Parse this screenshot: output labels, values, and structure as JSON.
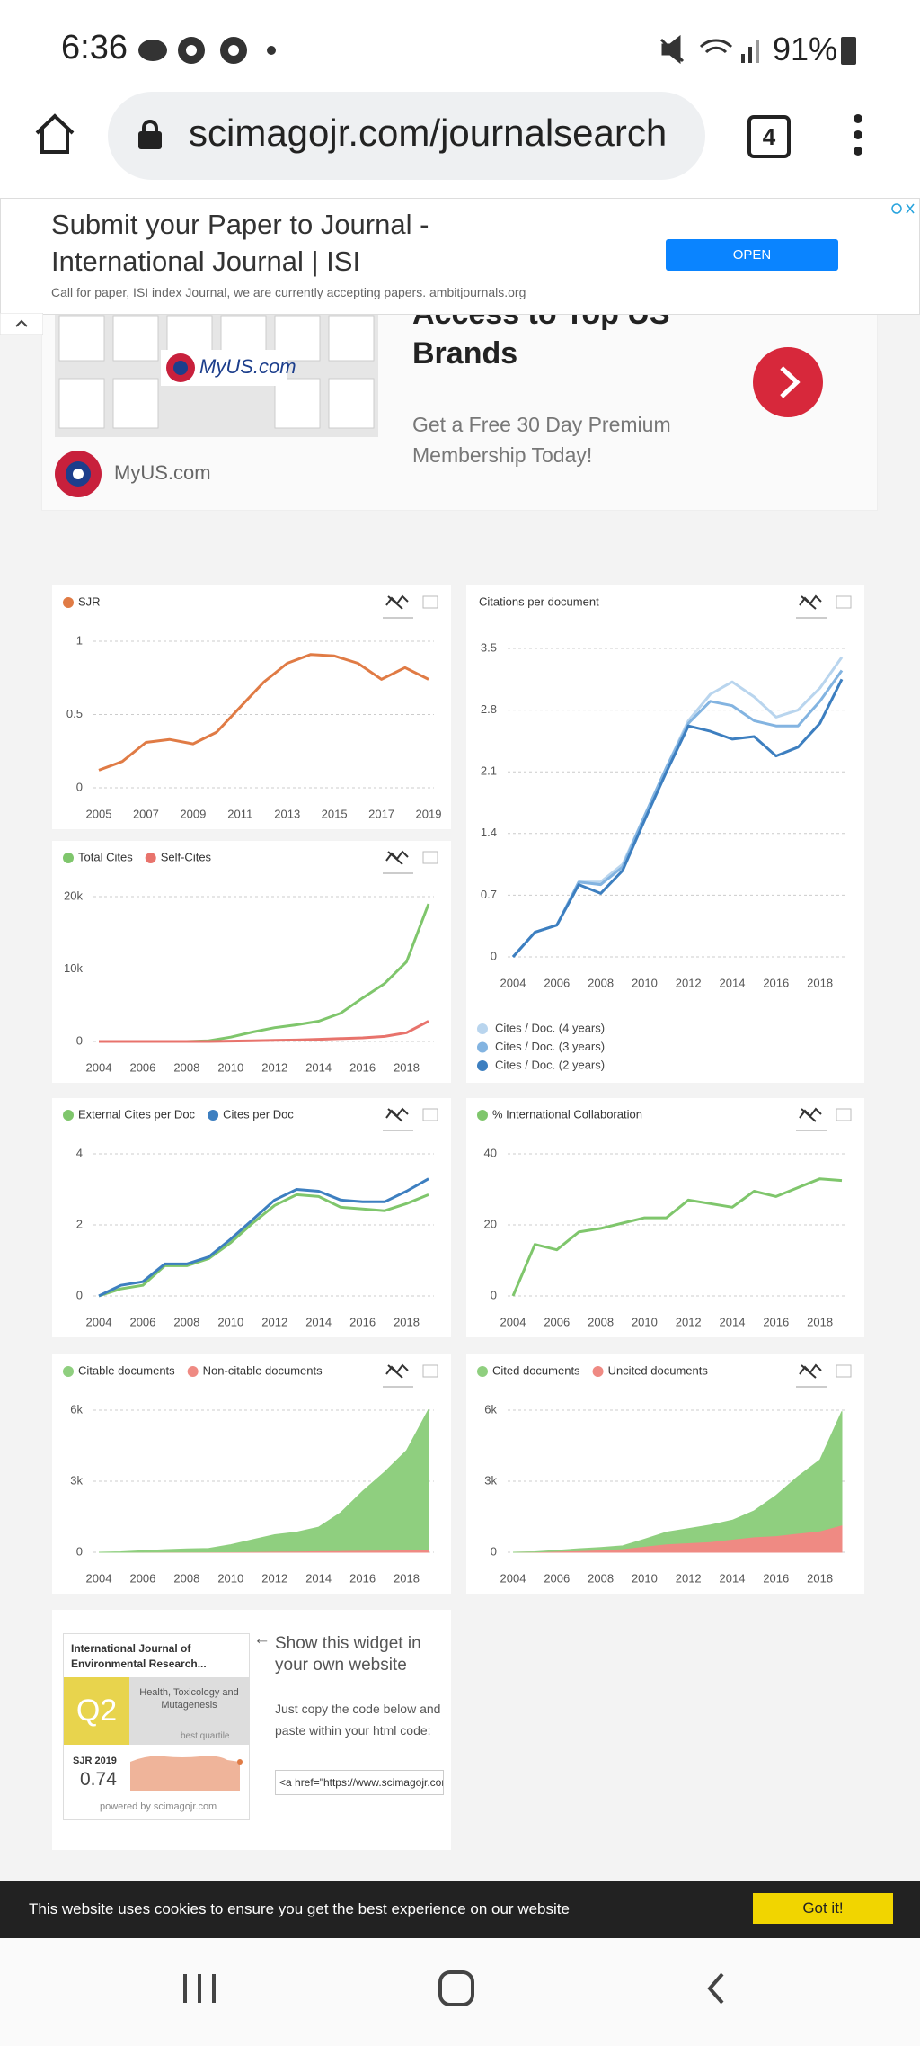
{
  "status_bar": {
    "time": "6:36",
    "battery": "91%"
  },
  "browser": {
    "url": "scimagojr.com/journalsearch",
    "tab_count": "4"
  },
  "ad_banner": {
    "title": "Submit your Paper to Journal - International Journal | ISI",
    "text": "Call for paper, ISI index Journal, we are currently accepting papers. ambitjournals.org",
    "button": "OPEN"
  },
  "ad_myus": {
    "headline": "Access to Top US Brands",
    "text": "Get a Free 30 Day Premium Membership Today!",
    "brand": "MyUS.com",
    "logo_text": "MyUS.com"
  },
  "chart_data": [
    {
      "type": "line",
      "legend": "top",
      "x": [
        2005,
        2006,
        2007,
        2008,
        2009,
        2010,
        2011,
        2012,
        2013,
        2014,
        2015,
        2016,
        2017,
        2018,
        2019
      ],
      "xlim": [
        2005,
        2019
      ],
      "xticks": [
        2005,
        2007,
        2009,
        2011,
        2013,
        2015,
        2017,
        2019
      ],
      "ylim": [
        0,
        1
      ],
      "yticks": [
        0,
        0.5,
        1
      ],
      "grid": true,
      "series": [
        {
          "name": "SJR",
          "color": "#e07b45",
          "values": [
            0.12,
            0.18,
            0.31,
            0.33,
            0.3,
            0.38,
            0.55,
            0.72,
            0.85,
            0.91,
            0.9,
            0.85,
            0.74,
            0.82,
            0.74
          ]
        }
      ]
    },
    {
      "type": "line",
      "legend": "bottom",
      "title": "Citations per document",
      "x": [
        2004,
        2005,
        2006,
        2007,
        2008,
        2009,
        2010,
        2011,
        2012,
        2013,
        2014,
        2015,
        2016,
        2017,
        2018,
        2019
      ],
      "xlim": [
        2004,
        2019
      ],
      "xticks": [
        2004,
        2006,
        2008,
        2010,
        2012,
        2014,
        2016,
        2018
      ],
      "ylim": [
        0,
        3.5
      ],
      "yticks": [
        0,
        0.7,
        1.4,
        2.1,
        2.8,
        3.5
      ],
      "grid": true,
      "series": [
        {
          "name": "Cites / Doc. (4 years)",
          "color": "#b9d5ee",
          "values": [
            null,
            null,
            null,
            0.85,
            0.85,
            1.05,
            1.6,
            2.15,
            2.68,
            2.98,
            3.12,
            2.95,
            2.72,
            2.8,
            3.05,
            3.4
          ]
        },
        {
          "name": "Cites / Doc. (3 years)",
          "color": "#83b4e1",
          "values": [
            0,
            0.28,
            0.36,
            0.85,
            0.82,
            1.02,
            1.6,
            2.15,
            2.65,
            2.9,
            2.85,
            2.68,
            2.62,
            2.62,
            2.9,
            3.25
          ]
        },
        {
          "name": "Cites / Doc. (2 years)",
          "color": "#3d7fc0",
          "values": [
            0,
            0.28,
            0.36,
            0.82,
            0.72,
            0.98,
            1.55,
            2.1,
            2.62,
            2.56,
            2.47,
            2.5,
            2.28,
            2.38,
            2.65,
            3.15
          ]
        }
      ]
    },
    {
      "type": "line",
      "legend": "top",
      "x": [
        2004,
        2005,
        2006,
        2007,
        2008,
        2009,
        2010,
        2011,
        2012,
        2013,
        2014,
        2015,
        2016,
        2017,
        2018,
        2019
      ],
      "xlim": [
        2004,
        2019
      ],
      "xticks": [
        2004,
        2006,
        2008,
        2010,
        2012,
        2014,
        2016,
        2018
      ],
      "ylim": [
        0,
        20000
      ],
      "yticks": [
        0,
        {
          "value": 10000,
          "label": "10k"
        },
        {
          "value": 20000,
          "label": "20k"
        }
      ],
      "grid": true,
      "series": [
        {
          "name": "Total Cites",
          "color": "#7fc66c",
          "values": [
            0,
            0,
            0,
            0,
            0,
            100,
            600,
            1300,
            1900,
            2300,
            2800,
            3900,
            6000,
            8000,
            11000,
            19000
          ]
        },
        {
          "name": "Self-Cites",
          "color": "#e8736c",
          "values": [
            0,
            0,
            0,
            0,
            0,
            0,
            50,
            100,
            150,
            200,
            300,
            400,
            500,
            700,
            1200,
            2800
          ]
        }
      ]
    },
    {
      "type": "line",
      "legend": "top",
      "x": [
        2004,
        2005,
        2006,
        2007,
        2008,
        2009,
        2010,
        2011,
        2012,
        2013,
        2014,
        2015,
        2016,
        2017,
        2018,
        2019
      ],
      "xlim": [
        2004,
        2019
      ],
      "xticks": [
        2004,
        2006,
        2008,
        2010,
        2012,
        2014,
        2016,
        2018
      ],
      "ylim": [
        0,
        4
      ],
      "yticks": [
        0,
        2,
        4
      ],
      "grid": true,
      "series": [
        {
          "name": "External Cites per Doc",
          "color": "#7fc66c",
          "values": [
            0,
            0.2,
            0.3,
            0.85,
            0.85,
            1.05,
            1.5,
            2.05,
            2.55,
            2.85,
            2.8,
            2.5,
            2.45,
            2.4,
            2.6,
            2.85
          ]
        },
        {
          "name": "Cites per Doc",
          "color": "#3d7fc0",
          "values": [
            0,
            0.3,
            0.4,
            0.9,
            0.9,
            1.1,
            1.6,
            2.15,
            2.7,
            3.0,
            2.95,
            2.7,
            2.65,
            2.65,
            2.95,
            3.3
          ]
        }
      ]
    },
    {
      "type": "line",
      "legend": "top",
      "x": [
        2004,
        2005,
        2006,
        2007,
        2008,
        2009,
        2010,
        2011,
        2012,
        2013,
        2014,
        2015,
        2016,
        2017,
        2018,
        2019
      ],
      "xlim": [
        2004,
        2019
      ],
      "xticks": [
        2004,
        2006,
        2008,
        2010,
        2012,
        2014,
        2016,
        2018
      ],
      "ylim": [
        0,
        40
      ],
      "yticks": [
        0,
        20,
        40
      ],
      "grid": true,
      "series": [
        {
          "name": "% International Collaboration",
          "color": "#7fc66c",
          "values": [
            0,
            14.5,
            13,
            18,
            19,
            20.5,
            22,
            22,
            27,
            26,
            25,
            29.5,
            28,
            30.5,
            33,
            32.5
          ]
        }
      ]
    },
    {
      "type": "area",
      "legend": "top",
      "x": [
        2004,
        2005,
        2006,
        2007,
        2008,
        2009,
        2010,
        2011,
        2012,
        2013,
        2014,
        2015,
        2016,
        2017,
        2018,
        2019
      ],
      "xlim": [
        2004,
        2019
      ],
      "xticks": [
        2004,
        2006,
        2008,
        2010,
        2012,
        2014,
        2016,
        2018
      ],
      "ylim": [
        0,
        6000
      ],
      "yticks": [
        0,
        {
          "value": 3000,
          "label": "3k"
        },
        {
          "value": 6000,
          "label": "6k"
        }
      ],
      "grid": true,
      "series": [
        {
          "name": "Citable documents",
          "color": "#8fcf7f",
          "values": [
            0,
            20,
            60,
            100,
            130,
            150,
            300,
            500,
            700,
            800,
            1000,
            1600,
            2500,
            3300,
            4200,
            5900
          ]
        },
        {
          "name": "Non-citable documents",
          "color": "#ef8a83",
          "values": [
            0,
            0,
            5,
            10,
            10,
            15,
            20,
            30,
            40,
            50,
            60,
            70,
            80,
            90,
            100,
            130
          ]
        }
      ]
    },
    {
      "type": "area",
      "legend": "top",
      "x": [
        2004,
        2005,
        2006,
        2007,
        2008,
        2009,
        2010,
        2011,
        2012,
        2013,
        2014,
        2015,
        2016,
        2017,
        2018,
        2019
      ],
      "xlim": [
        2004,
        2019
      ],
      "xticks": [
        2004,
        2006,
        2008,
        2010,
        2012,
        2014,
        2016,
        2018
      ],
      "ylim": [
        0,
        6000
      ],
      "yticks": [
        0,
        {
          "value": 3000,
          "label": "3k"
        },
        {
          "value": 6000,
          "label": "6k"
        }
      ],
      "grid": true,
      "series": [
        {
          "name": "Cited documents",
          "color": "#8fcf7f",
          "values": [
            0,
            10,
            40,
            80,
            100,
            120,
            300,
            500,
            600,
            700,
            800,
            1100,
            1700,
            2400,
            3000,
            4800
          ]
        },
        {
          "name": "Uncited documents",
          "color": "#ef8a83",
          "values": [
            0,
            10,
            40,
            70,
            100,
            150,
            250,
            350,
            400,
            450,
            550,
            650,
            700,
            800,
            900,
            1150
          ]
        }
      ]
    }
  ],
  "widget": {
    "journal": "International Journal of Environmental Research...",
    "quartile": "Q2",
    "category": "Health, Toxicology and Mutagenesis",
    "quartile_note": "best quartile",
    "sjr_label": "SJR 2019",
    "sjr_value": "0.74",
    "powered": "powered by scimagojr.com",
    "heading": "Show this widget in your own website",
    "instructions": "Just copy the code below and paste within your html code:",
    "code": "<a href=\"https://www.scimagojr.com/journalsearch.php"
  },
  "cookie_bar": {
    "text": "This website uses cookies to ensure you get the best experience on our website",
    "button": "Got it!"
  }
}
